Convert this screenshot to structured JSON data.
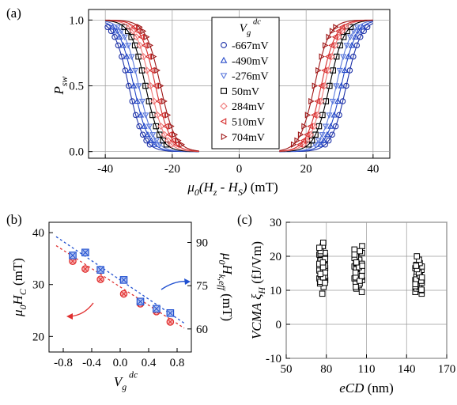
{
  "colors": {
    "-667mV": "#1f33a8",
    "-490mV": "#2448c8",
    "-276mV": "#5a78dc",
    "50mV": "#000000",
    "284mV": "#f07878",
    "510mV": "#d63030",
    "704mV": "#a01818",
    "fit_low": "#2050d0",
    "fit_high": "#e03030",
    "arrow_blue": "#2050d0",
    "arrow_red": "#e03030"
  },
  "chart_data": [
    {
      "panel": "(a)",
      "type": "line",
      "xlabel": "μ0(Hz - HS) (mT)",
      "ylabel": "Psw",
      "xlim": [
        -45,
        45
      ],
      "ylim": [
        -0.05,
        1.08
      ],
      "xticks": [
        -40,
        -20,
        0,
        20,
        40
      ],
      "yticks": [
        0.0,
        0.5,
        1.0
      ],
      "grid": true,
      "legend": {
        "title": "Vg dc",
        "position": "center",
        "entries": [
          "-667mV",
          "-490mV",
          "-276mV",
          "50mV",
          "284mV",
          "510mV",
          "704mV"
        ]
      },
      "series": [
        {
          "name": "-667mV",
          "marker": "circle",
          "negative_center": -33.0,
          "positive_center": 32.0,
          "width": 2.2
        },
        {
          "name": "-490mV",
          "marker": "triangle-up",
          "negative_center": -31.5,
          "positive_center": 30.5,
          "width": 2.2
        },
        {
          "name": "-276mV",
          "marker": "triangle-down",
          "negative_center": -30.0,
          "positive_center": 29.0,
          "width": 2.2
        },
        {
          "name": "50mV",
          "marker": "square",
          "negative_center": -28.0,
          "positive_center": 27.0,
          "width": 2.2
        },
        {
          "name": "284mV",
          "marker": "diamond",
          "negative_center": -26.5,
          "positive_center": 25.5,
          "width": 2.2
        },
        {
          "name": "510mV",
          "marker": "triangle-left",
          "negative_center": -25.0,
          "positive_center": 24.5,
          "width": 2.2
        },
        {
          "name": "704mV",
          "marker": "triangle-right",
          "negative_center": -23.5,
          "positive_center": 22.5,
          "width": 2.2
        }
      ]
    },
    {
      "panel": "(b)",
      "type": "scatter",
      "xlabel": "Vg dc",
      "ylabel": "μ0HC (mT)",
      "ylabel_right": "μ0Hk,eff (mT)",
      "xlim": [
        -1.0,
        1.0
      ],
      "ylim_left": [
        17,
        42
      ],
      "ylim_right": [
        52,
        97
      ],
      "xticks": [
        -0.8,
        -0.4,
        0.0,
        0.4,
        0.8
      ],
      "yticks_left": [
        20,
        30,
        40
      ],
      "yticks_right": [
        60,
        75,
        90
      ],
      "x": [
        -0.667,
        -0.49,
        -0.276,
        0.05,
        0.284,
        0.51,
        0.704
      ],
      "series": [
        {
          "axis": "left",
          "values": [
            34.5,
            33.0,
            31.0,
            28.2,
            26.3,
            24.8,
            22.8
          ],
          "fit": [
            [
              -0.9,
              37.5
            ],
            [
              0.9,
              21.6
            ]
          ]
        },
        {
          "axis": "right",
          "values": [
            85.5,
            86.5,
            80.5,
            77.0,
            69.5,
            67.0,
            65.5
          ],
          "fit": [
            [
              -0.9,
              92.0
            ],
            [
              0.9,
              62.0
            ]
          ]
        }
      ]
    },
    {
      "panel": "(c)",
      "type": "scatter",
      "xlabel": "eCD (nm)",
      "ylabel": "VCMA ξH (fJ/Vm)",
      "xlim": [
        50,
        170
      ],
      "ylim": [
        -10,
        30
      ],
      "xticks": [
        50,
        80,
        110,
        140,
        170
      ],
      "yticks": [
        -10,
        0,
        10,
        20,
        30
      ],
      "grid": true,
      "clusters": [
        {
          "x": 77,
          "x_spread": 4.5,
          "y_values": [
            9,
            11,
            12,
            13,
            13.5,
            14,
            14.5,
            15,
            15.5,
            16,
            16.5,
            17,
            17.5,
            18,
            18.5,
            19,
            19.5,
            20,
            20.5,
            21,
            22,
            23,
            24,
            12.5,
            14.2,
            15.8,
            17.2,
            18.8,
            16.2,
            13.8,
            20.8,
            15.2,
            17.8,
            19.2,
            14.8,
            16.8,
            18.2,
            21.5,
            12.2,
            22.5
          ]
        },
        {
          "x": 104,
          "x_spread": 6,
          "y_values": [
            9.5,
            10.5,
            11.5,
            12,
            12.5,
            13,
            13.5,
            14,
            14.5,
            15,
            15.5,
            16,
            16.5,
            17,
            17.5,
            18,
            18.5,
            19,
            20,
            21,
            22,
            23,
            11,
            13.2,
            14.8,
            16.2,
            17.8,
            19.5,
            15.8,
            13.8,
            12.8,
            16.8,
            18.2,
            14.2,
            20.5,
            17.2,
            15.2,
            21.5
          ]
        },
        {
          "x": 149,
          "x_spread": 5,
          "y_values": [
            9,
            9.5,
            10,
            10.5,
            11,
            11.5,
            12,
            12.5,
            13,
            13.5,
            14,
            14.5,
            15,
            15.5,
            16,
            16.5,
            17,
            17.5,
            18,
            19,
            20,
            10.2,
            11.2,
            12.2,
            13.2,
            14.2,
            15.2,
            16.2,
            12.8,
            11.8,
            13.8,
            17.2
          ]
        }
      ]
    }
  ]
}
